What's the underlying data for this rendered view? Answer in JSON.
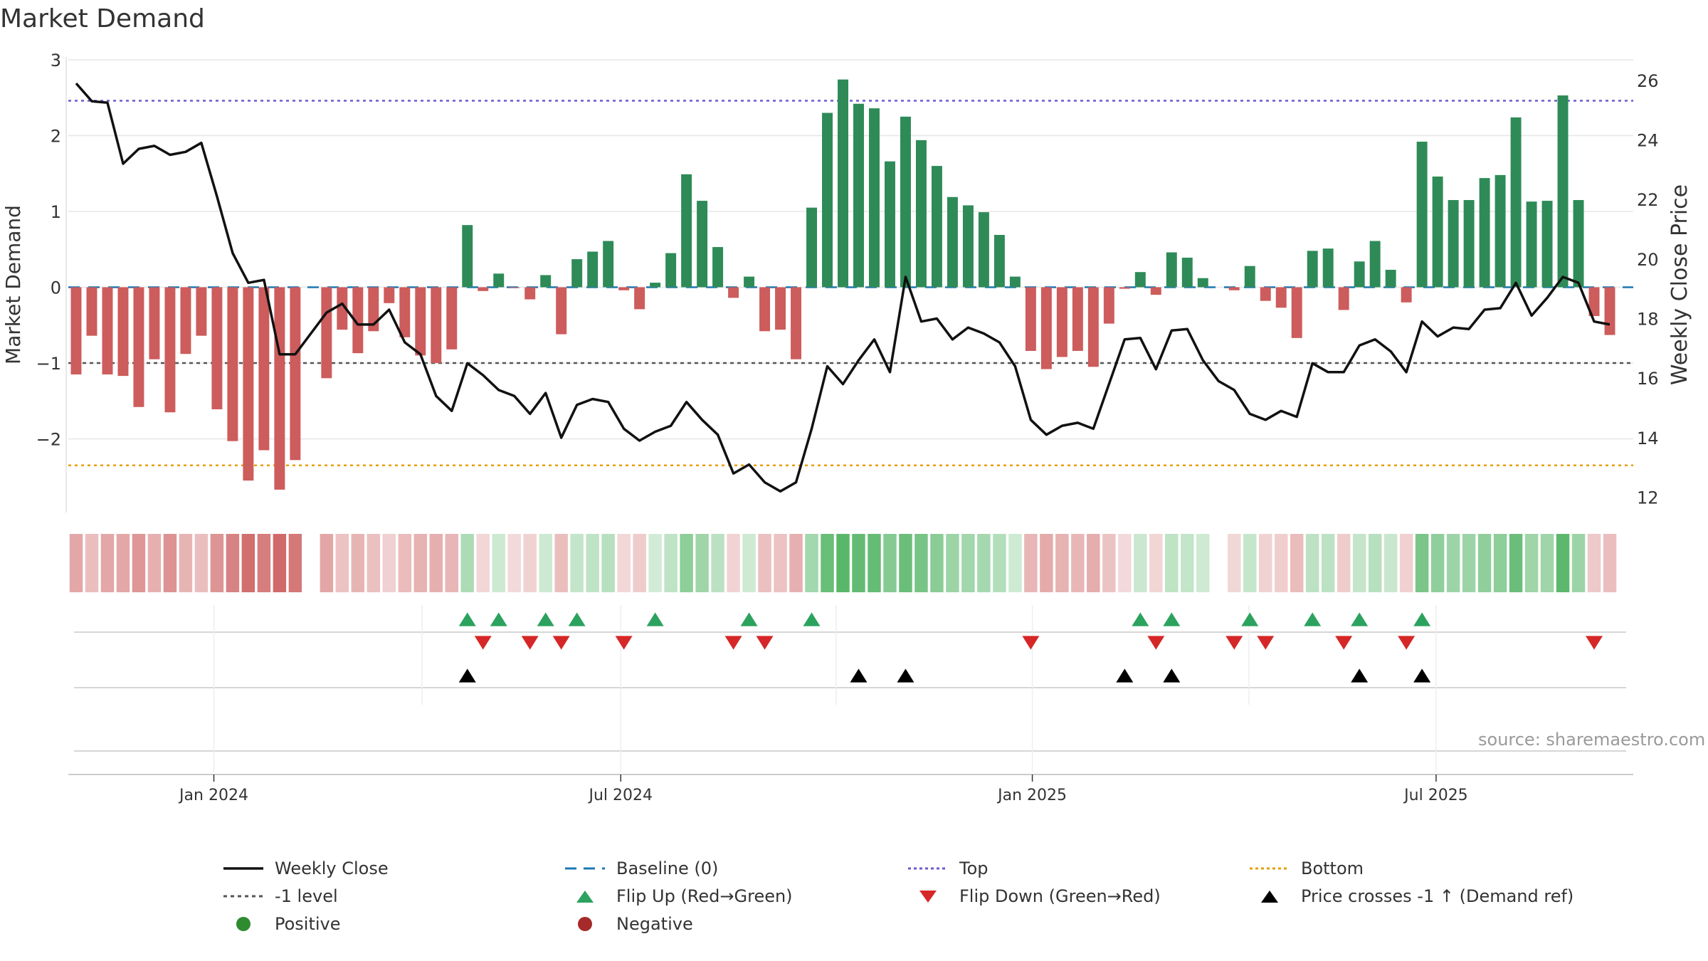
{
  "title": "Market Demand",
  "source": "source: sharemaestro.com",
  "colors": {
    "positive": "#2e8b57",
    "negative": "#cd5c5c",
    "price": "#111111",
    "baseline": "#1f77b4",
    "top": "#6a5acd",
    "bottom": "#e69f00",
    "level": "#555555",
    "flip_up": "#2ca25f",
    "flip_down": "#d62728",
    "cross": "#000000"
  },
  "chart_data": {
    "type": "bar",
    "title": "Market Demand",
    "ylabel": "Market Demand",
    "y2label": "Weekly Close Price",
    "ylim": [
      -3.0,
      3.0
    ],
    "y2lim": [
      11.0,
      26.8
    ],
    "yticks": [
      3,
      2,
      1,
      0,
      -1,
      -2
    ],
    "ytick_labels": [
      "3",
      "2",
      "1",
      "0",
      "−1",
      "−2"
    ],
    "y2ticks": [
      26,
      24,
      22,
      20,
      18,
      16,
      14,
      12
    ],
    "y2tick_labels": [
      "26",
      "24",
      "22",
      "20",
      "18",
      "16",
      "14",
      "12"
    ],
    "xticks": [
      {
        "label": "Jan 2024",
        "week": 9.3
      },
      {
        "label": "Jul 2024",
        "week": 35.3
      },
      {
        "label": "Jan 2025",
        "week": 61.6
      },
      {
        "label": "Jul 2025",
        "week": 87.4
      }
    ],
    "reference_lines": {
      "top": 2.46,
      "bottom": -2.35,
      "minus_one": -1.0,
      "baseline": 0
    },
    "weeks": 100,
    "demand": [
      -1.15,
      -0.64,
      -1.15,
      -1.17,
      -1.58,
      -0.95,
      -1.65,
      -0.88,
      -0.64,
      -1.61,
      -2.03,
      -2.55,
      -2.15,
      -2.67,
      -2.28,
      0.0,
      -1.2,
      -0.56,
      -0.87,
      -0.58,
      -0.21,
      -0.66,
      -0.9,
      -1.0,
      -0.82,
      0.82,
      -0.05,
      0.18,
      -0.01,
      -0.16,
      0.16,
      -0.62,
      0.37,
      0.47,
      0.61,
      -0.04,
      -0.29,
      0.06,
      0.45,
      1.49,
      1.14,
      0.53,
      -0.14,
      0.14,
      -0.58,
      -0.56,
      -0.95,
      1.05,
      2.3,
      2.74,
      2.42,
      2.36,
      1.66,
      2.25,
      1.94,
      1.6,
      1.19,
      1.08,
      0.99,
      0.69,
      0.14,
      -0.84,
      -1.08,
      -0.92,
      -0.84,
      -1.05,
      -0.48,
      -0.02,
      0.2,
      -0.1,
      0.46,
      0.39,
      0.12,
      0.0,
      -0.04,
      0.28,
      -0.18,
      -0.27,
      -0.67,
      0.48,
      0.51,
      -0.3,
      0.34,
      0.61,
      0.23,
      -0.2,
      1.92,
      1.46,
      1.15,
      1.15,
      1.44,
      1.48,
      2.24,
      1.13,
      1.14,
      2.53,
      1.15,
      -0.38,
      -0.63
    ],
    "price": [
      25.9,
      25.3,
      25.25,
      23.2,
      23.7,
      23.8,
      23.5,
      23.6,
      23.9,
      22.1,
      20.2,
      19.2,
      19.3,
      16.8,
      16.8,
      17.5,
      18.2,
      18.5,
      17.8,
      17.8,
      18.3,
      17.2,
      16.8,
      15.4,
      14.9,
      16.5,
      16.1,
      15.6,
      15.4,
      14.8,
      15.5,
      14.0,
      15.1,
      15.3,
      15.2,
      14.3,
      13.9,
      14.2,
      14.4,
      15.2,
      14.6,
      14.1,
      12.8,
      13.1,
      12.5,
      12.2,
      12.5,
      14.3,
      16.4,
      15.8,
      16.6,
      17.3,
      16.2,
      19.4,
      17.9,
      18.0,
      17.3,
      17.7,
      17.5,
      17.2,
      16.4,
      14.6,
      14.1,
      14.4,
      14.5,
      14.3,
      15.8,
      17.3,
      17.35,
      16.3,
      17.6,
      17.65,
      16.6,
      15.9,
      15.6,
      14.8,
      14.6,
      14.9,
      14.7,
      16.5,
      16.2,
      16.2,
      17.1,
      17.3,
      16.9,
      16.2,
      17.9,
      17.4,
      17.7,
      17.65,
      18.3,
      18.35,
      19.2,
      18.1,
      18.7,
      19.4,
      19.2,
      17.9,
      17.8
    ],
    "flip_up_weeks": [
      25,
      27,
      30,
      32,
      37,
      43,
      47,
      68,
      70,
      75,
      79,
      82,
      86
    ],
    "flip_down_weeks": [
      26,
      29,
      31,
      35,
      42,
      44,
      61,
      69,
      74,
      76,
      81,
      85,
      97
    ],
    "price_cross_weeks": [
      25,
      50,
      53,
      67,
      70,
      82,
      86
    ],
    "legend": [
      {
        "label": "Weekly Close",
        "kind": "line"
      },
      {
        "label": "Baseline (0)",
        "kind": "dash"
      },
      {
        "label": "Top",
        "kind": "dot-top"
      },
      {
        "label": "Bottom",
        "kind": "dot-bottom"
      },
      {
        "label": "-1 level",
        "kind": "dot-level"
      },
      {
        "label": "Flip Up (Red→Green)",
        "kind": "tri-up"
      },
      {
        "label": "Flip Down (Green→Red)",
        "kind": "tri-down"
      },
      {
        "label": "Price crosses -1 ↑ (Demand ref)",
        "kind": "tri-cross"
      },
      {
        "label": "Positive",
        "kind": "dot-pos"
      },
      {
        "label": "Negative",
        "kind": "dot-neg"
      }
    ]
  }
}
